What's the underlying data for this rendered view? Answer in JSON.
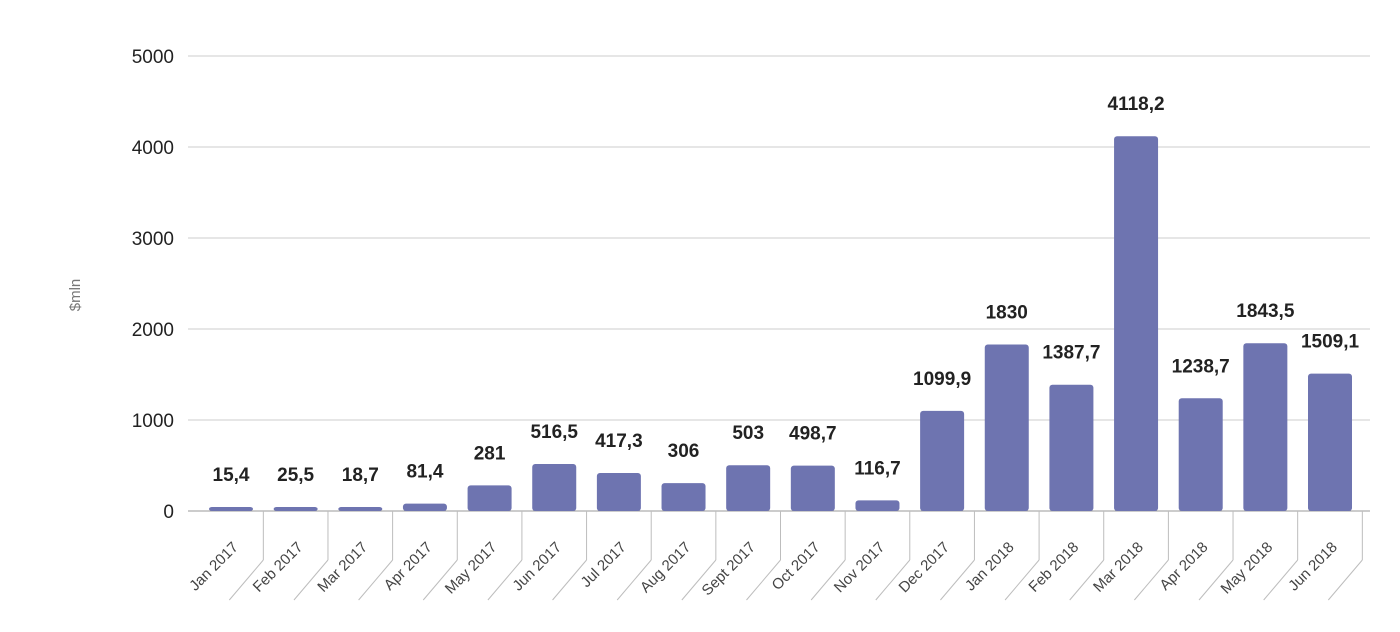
{
  "chart_data": {
    "type": "bar",
    "ylabel": "$mln",
    "ylim": [
      0,
      5000
    ],
    "yticks": [
      "0",
      "1000",
      "2000",
      "3000",
      "4000",
      "5000"
    ],
    "grid": true,
    "bar_color": "#6e74b0",
    "categories": [
      "Jan 2017",
      "Feb 2017",
      "Mar 2017",
      "Apr 2017",
      "May 2017",
      "Jun 2017",
      "Jul 2017",
      "Aug 2017",
      "Sept 2017",
      "Oct 2017",
      "Nov 2017",
      "Dec 2017",
      "Jan 2018",
      "Feb 2018",
      "Mar 2018",
      "Apr 2018",
      "May 2018",
      "Jun 2018"
    ],
    "values": [
      15.4,
      25.5,
      18.7,
      81.4,
      281,
      516.5,
      417.3,
      306,
      503,
      498.7,
      116.7,
      1099.9,
      1830,
      1387.7,
      4118.2,
      1238.7,
      1843.5,
      1509.1
    ],
    "labels": [
      "15,4",
      "25,5",
      "18,7",
      "81,4",
      "281",
      "516,5",
      "417,3",
      "306",
      "503",
      "498,7",
      "116,7",
      "1099,9",
      "1830",
      "1387,7",
      "4118,2",
      "1238,7",
      "1843,5",
      "1509,1"
    ]
  }
}
